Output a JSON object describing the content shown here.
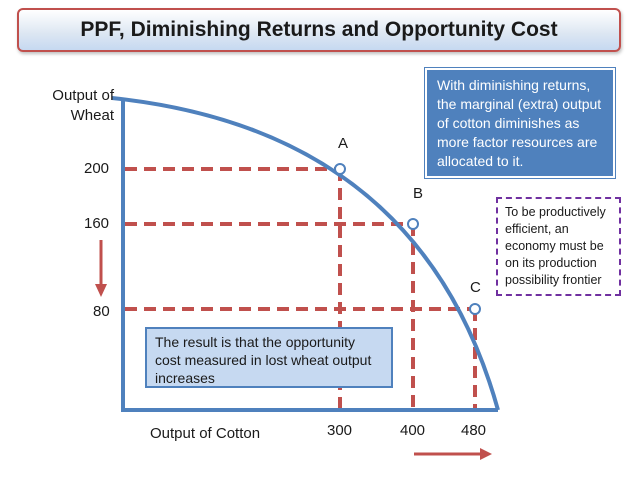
{
  "title": "PPF, Diminishing Returns and Opportunity Cost",
  "y_axis_label": [
    "Output of",
    "Wheat"
  ],
  "x_axis_label": "Output of Cotton",
  "y_ticks": [
    "200",
    "160",
    "80"
  ],
  "x_ticks": [
    "300",
    "400",
    "480"
  ],
  "points": [
    "A",
    "B",
    "C"
  ],
  "box_returns": "With diminishing returns, the marginal (extra) output of cotton diminishes as more factor resources are allocated to it.",
  "box_efficient": "To be productively efficient, an economy must be on its production possibility frontier",
  "box_result": "The result is that the opportunity cost measured in lost wheat output increases",
  "colors": {
    "curve": "#4f81bd",
    "dashed": "#c0504d",
    "arrow": "#c0504d",
    "title_border": "#c0504d"
  },
  "chart_data": {
    "type": "line",
    "points": [
      {
        "label": "A",
        "x": 300,
        "y": 200
      },
      {
        "label": "B",
        "x": 400,
        "y": 160
      },
      {
        "label": "C",
        "x": 480,
        "y": 80
      }
    ]
  }
}
